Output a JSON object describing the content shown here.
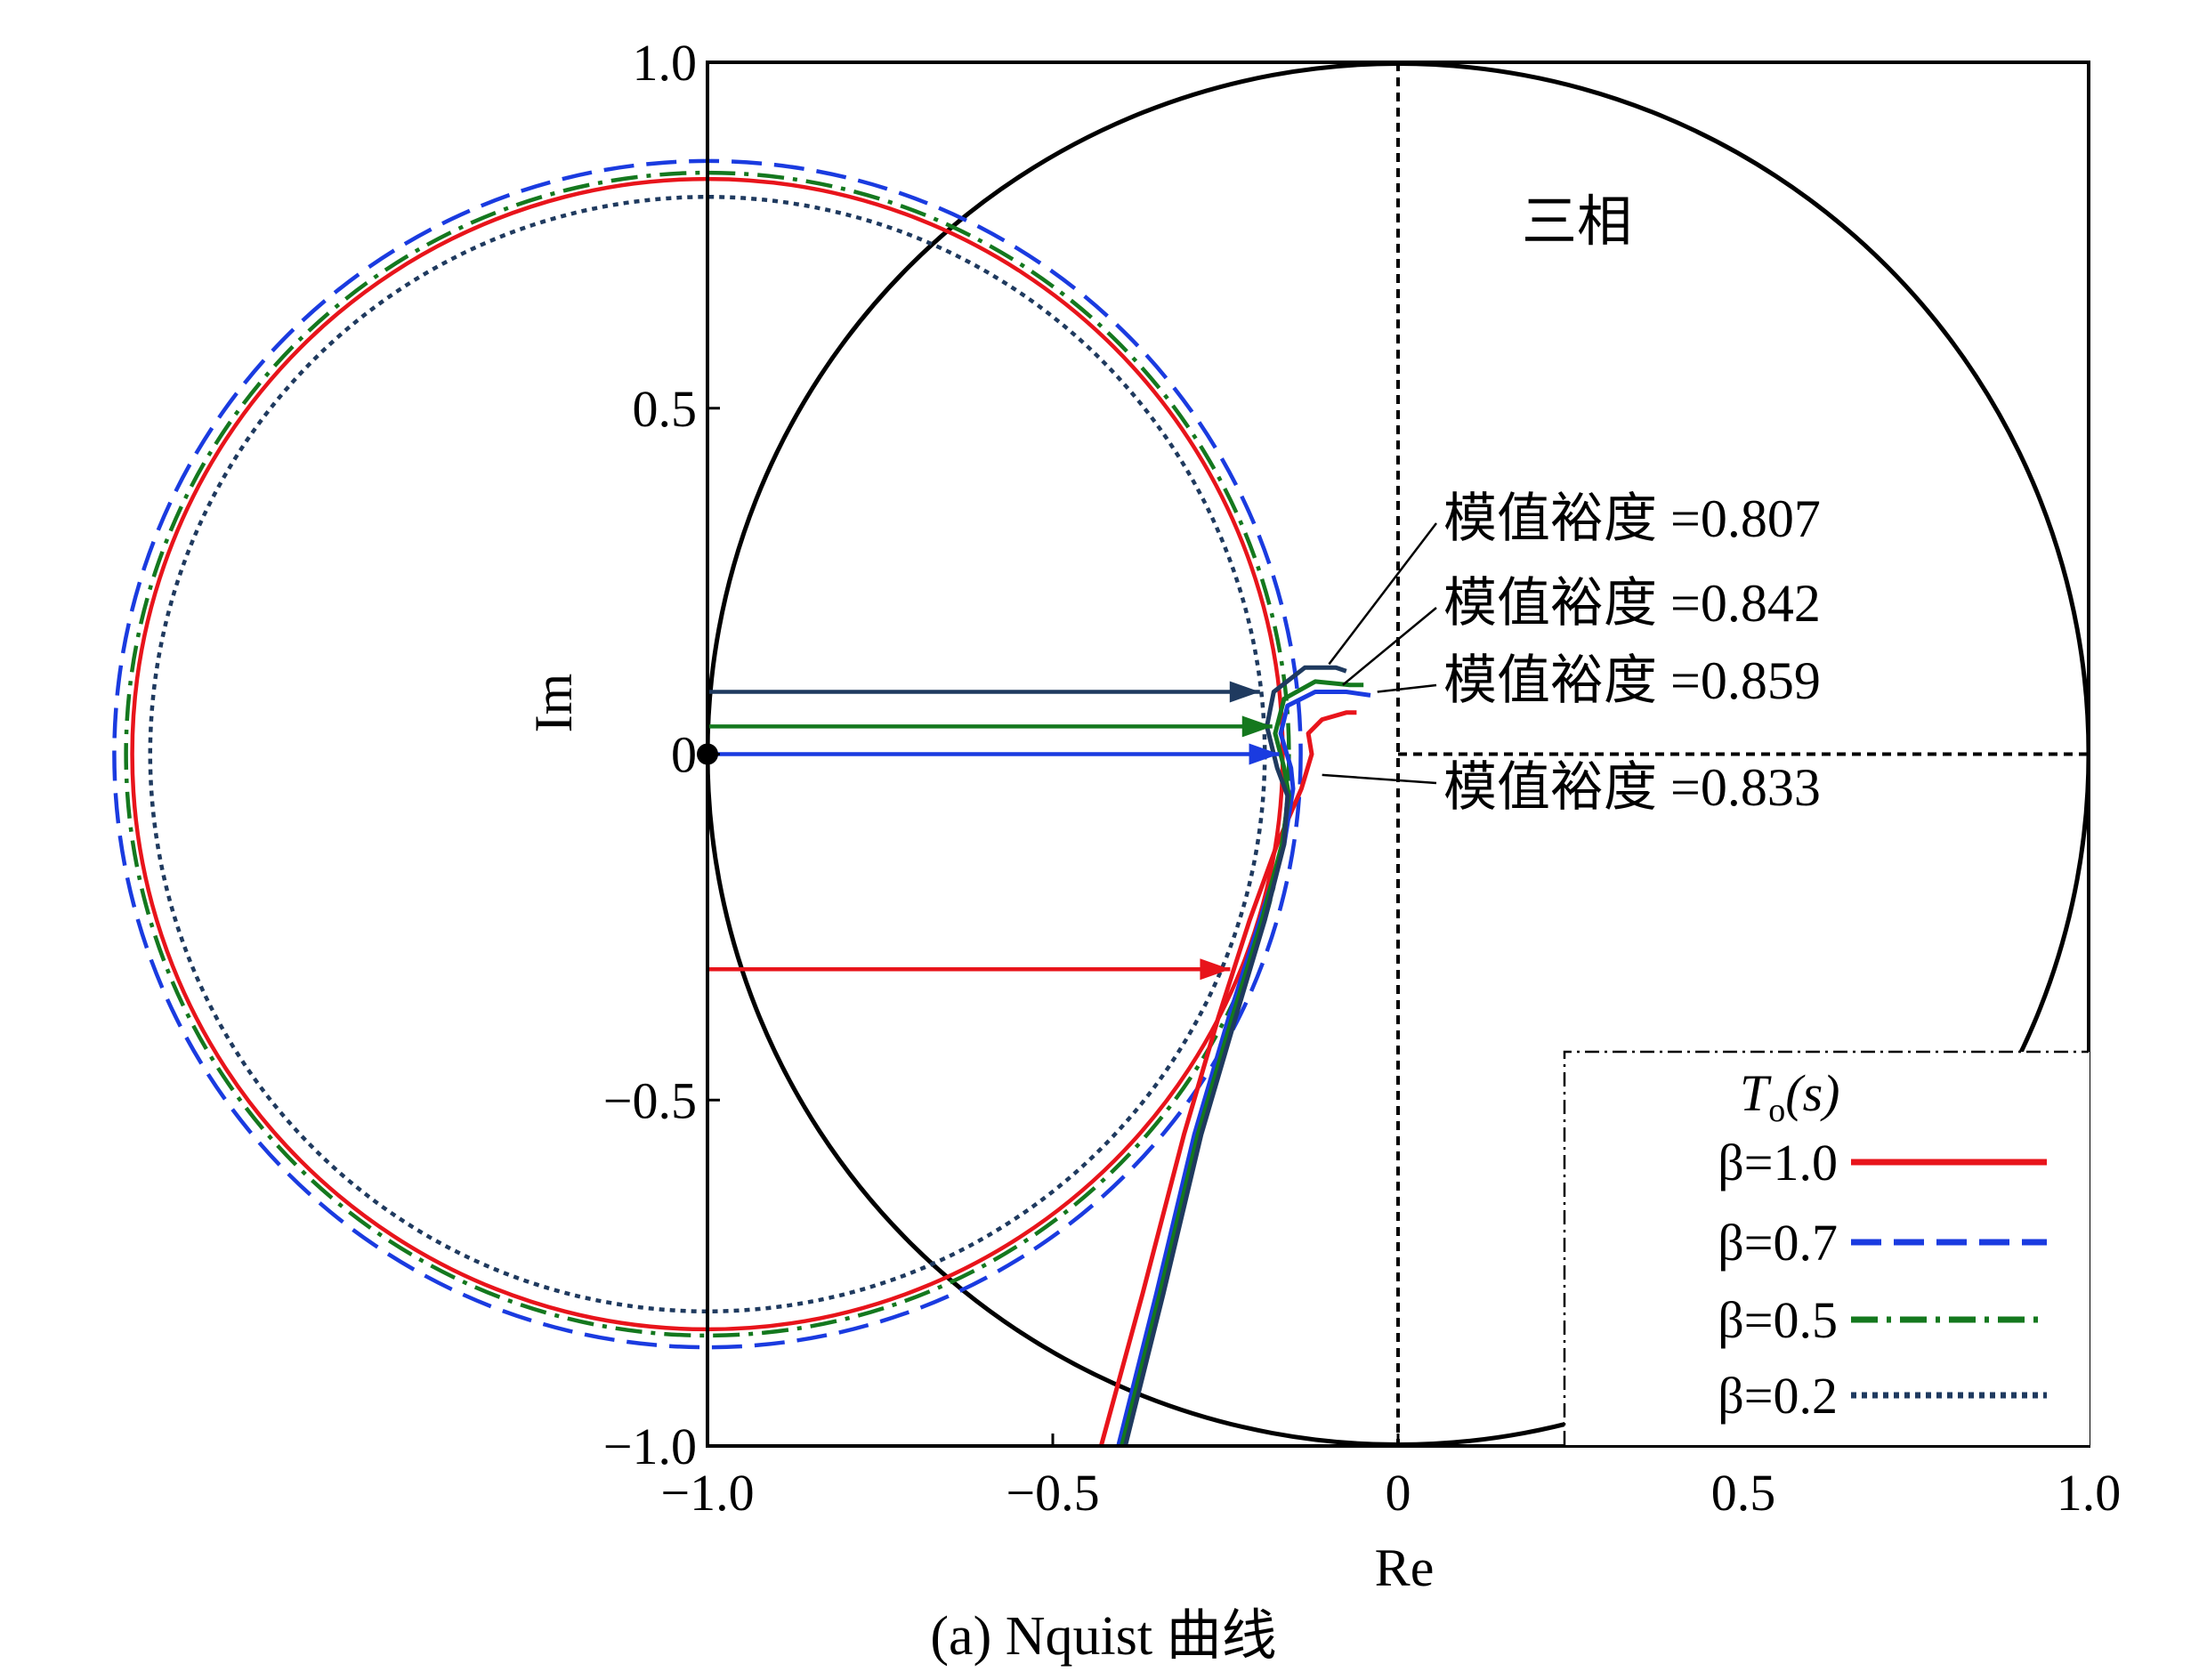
{
  "chart_data": {
    "type": "line",
    "title": "",
    "xlabel": "Re",
    "ylabel": "Im",
    "xlim": [
      -1.0,
      1.0
    ],
    "ylim": [
      -1.0,
      1.0
    ],
    "xticks": [
      "−1.0",
      "−0.5",
      "0",
      "0.5",
      "1.0"
    ],
    "yticks": [
      "1.0",
      "0.5",
      "0",
      "−0.5",
      "−1.0"
    ],
    "grid": false,
    "region_label": "三相",
    "unit_circle": {
      "center": [
        0,
        0
      ],
      "radius": 1.0
    },
    "critical_point": [
      -1,
      0
    ],
    "legend": {
      "title": "T",
      "title_sub": "o",
      "title_arg": "(s)",
      "position": "bottom-right"
    },
    "series": [
      {
        "name": "β=1.0",
        "color": "#e8141b",
        "style": "solid",
        "margin_circle_radius": 0.833,
        "curve": [
          [
            -0.43,
            -1.0
          ],
          [
            -0.37,
            -0.78
          ],
          [
            -0.31,
            -0.55
          ],
          [
            -0.26,
            -0.38
          ],
          [
            -0.215,
            -0.24
          ],
          [
            -0.175,
            -0.13
          ],
          [
            -0.14,
            -0.05
          ],
          [
            -0.125,
            0.0
          ],
          [
            -0.13,
            0.03
          ],
          [
            -0.11,
            0.05
          ],
          [
            -0.075,
            0.06
          ],
          [
            -0.06,
            0.06
          ]
        ],
        "margin_arrow_end": [
          -0.243,
          -0.311
        ]
      },
      {
        "name": "β=0.7",
        "color": "#1a3be0",
        "style": "dashed",
        "margin_circle_radius": 0.859,
        "curve": [
          [
            -0.405,
            -1.0
          ],
          [
            -0.35,
            -0.78
          ],
          [
            -0.295,
            -0.55
          ],
          [
            -0.245,
            -0.38
          ],
          [
            -0.2,
            -0.24
          ],
          [
            -0.165,
            -0.13
          ],
          [
            -0.152,
            -0.05
          ],
          [
            -0.155,
            -0.02
          ],
          [
            -0.17,
            0.03
          ],
          [
            -0.16,
            0.07
          ],
          [
            -0.12,
            0.09
          ],
          [
            -0.075,
            0.09
          ],
          [
            -0.04,
            0.085
          ]
        ],
        "margin_arrow_end": [
          -0.172,
          0.0
        ]
      },
      {
        "name": "β=0.5",
        "color": "#14781e",
        "style": "dashdot",
        "margin_circle_radius": 0.842,
        "curve": [
          [
            -0.4,
            -1.0
          ],
          [
            -0.345,
            -0.78
          ],
          [
            -0.29,
            -0.55
          ],
          [
            -0.24,
            -0.38
          ],
          [
            -0.197,
            -0.24
          ],
          [
            -0.168,
            -0.13
          ],
          [
            -0.158,
            -0.06
          ],
          [
            -0.165,
            -0.02
          ],
          [
            -0.178,
            0.03
          ],
          [
            -0.165,
            0.08
          ],
          [
            -0.12,
            0.105
          ],
          [
            -0.07,
            0.1
          ],
          [
            -0.05,
            0.1
          ]
        ],
        "margin_arrow_end": [
          -0.182,
          0.04
        ]
      },
      {
        "name": "β=0.2",
        "color": "#1f3a5f",
        "style": "dotted",
        "margin_circle_radius": 0.807,
        "curve": [
          [
            -0.395,
            -1.0
          ],
          [
            -0.34,
            -0.78
          ],
          [
            -0.285,
            -0.55
          ],
          [
            -0.235,
            -0.38
          ],
          [
            -0.193,
            -0.24
          ],
          [
            -0.165,
            -0.13
          ],
          [
            -0.16,
            -0.06
          ],
          [
            -0.175,
            -0.02
          ],
          [
            -0.19,
            0.04
          ],
          [
            -0.18,
            0.09
          ],
          [
            -0.135,
            0.125
          ],
          [
            -0.09,
            0.125
          ],
          [
            -0.075,
            0.12
          ]
        ],
        "margin_arrow_end": [
          -0.2,
          0.09
        ]
      }
    ],
    "annotations": [
      {
        "text": "模值裕度 =0.807",
        "series": "β=0.2",
        "point": [
          -0.1,
          0.13
        ]
      },
      {
        "text": "模值裕度 =0.842",
        "series": "β=0.5",
        "point": [
          -0.08,
          0.1
        ]
      },
      {
        "text": "模值裕度 =0.859",
        "series": "β=0.7",
        "point": [
          -0.03,
          0.09
        ]
      },
      {
        "text": "模值裕度 =0.833",
        "series": "β=1.0",
        "point": [
          -0.11,
          -0.03
        ]
      }
    ]
  },
  "caption": "(a)  Nquist 曲线"
}
